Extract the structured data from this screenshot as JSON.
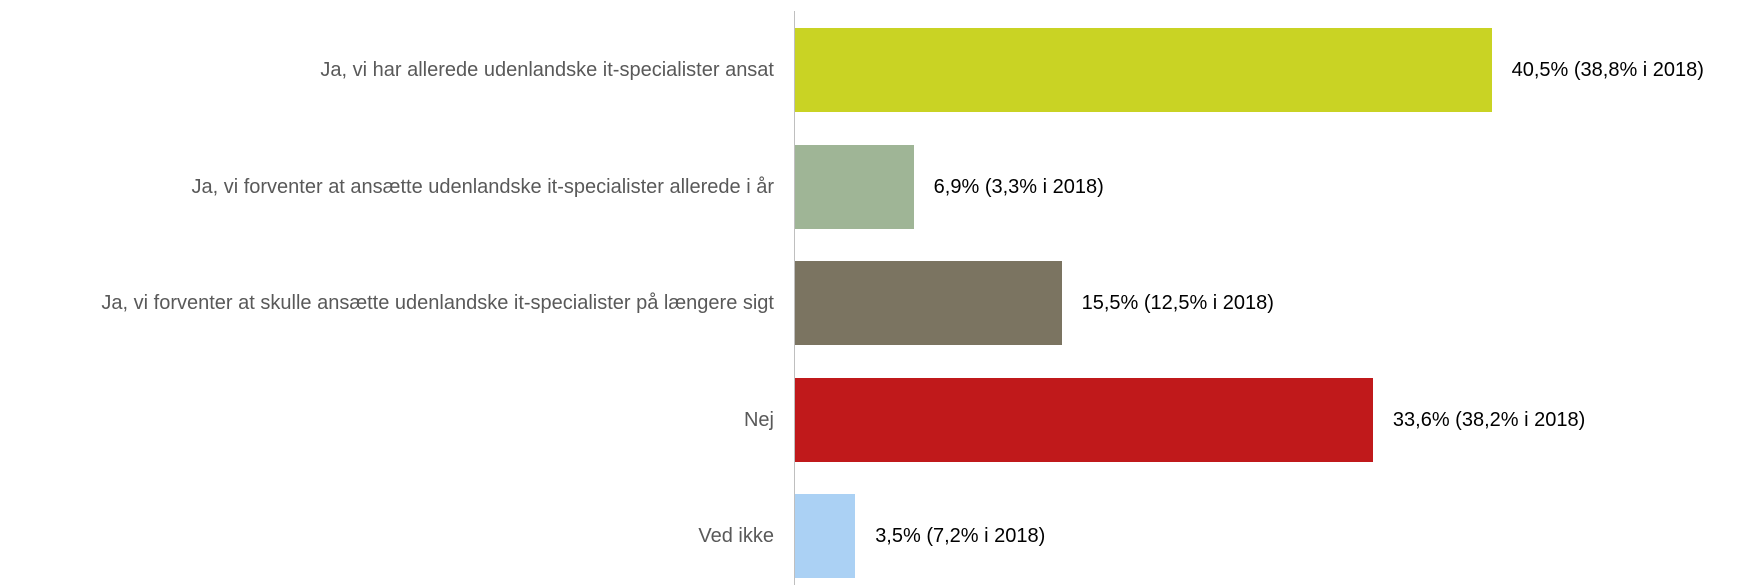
{
  "chart_data": {
    "type": "bar",
    "orientation": "horizontal",
    "categories": [
      "Ja, vi har allerede udenlandske it-specialister ansat",
      "Ja, vi forventer at ansætte udenlandske it-specialister allerede i år",
      "Ja, vi forventer at skulle ansætte udenlandske it-specialister på længere sigt",
      "Nej",
      "Ved ikke"
    ],
    "values": [
      40.5,
      6.9,
      15.5,
      33.6,
      3.5
    ],
    "value_labels": [
      "40,5% (38,8% i 2018)",
      "6,9% (3,3% i 2018)",
      "15,5% (12,5% i 2018)",
      "33,6% (38,2% i 2018)",
      "3,5% (7,2% i 2018)"
    ],
    "colors": [
      "#c9d324",
      "#9fb596",
      "#7b7461",
      "#c0191b",
      "#abd1f4"
    ]
  }
}
